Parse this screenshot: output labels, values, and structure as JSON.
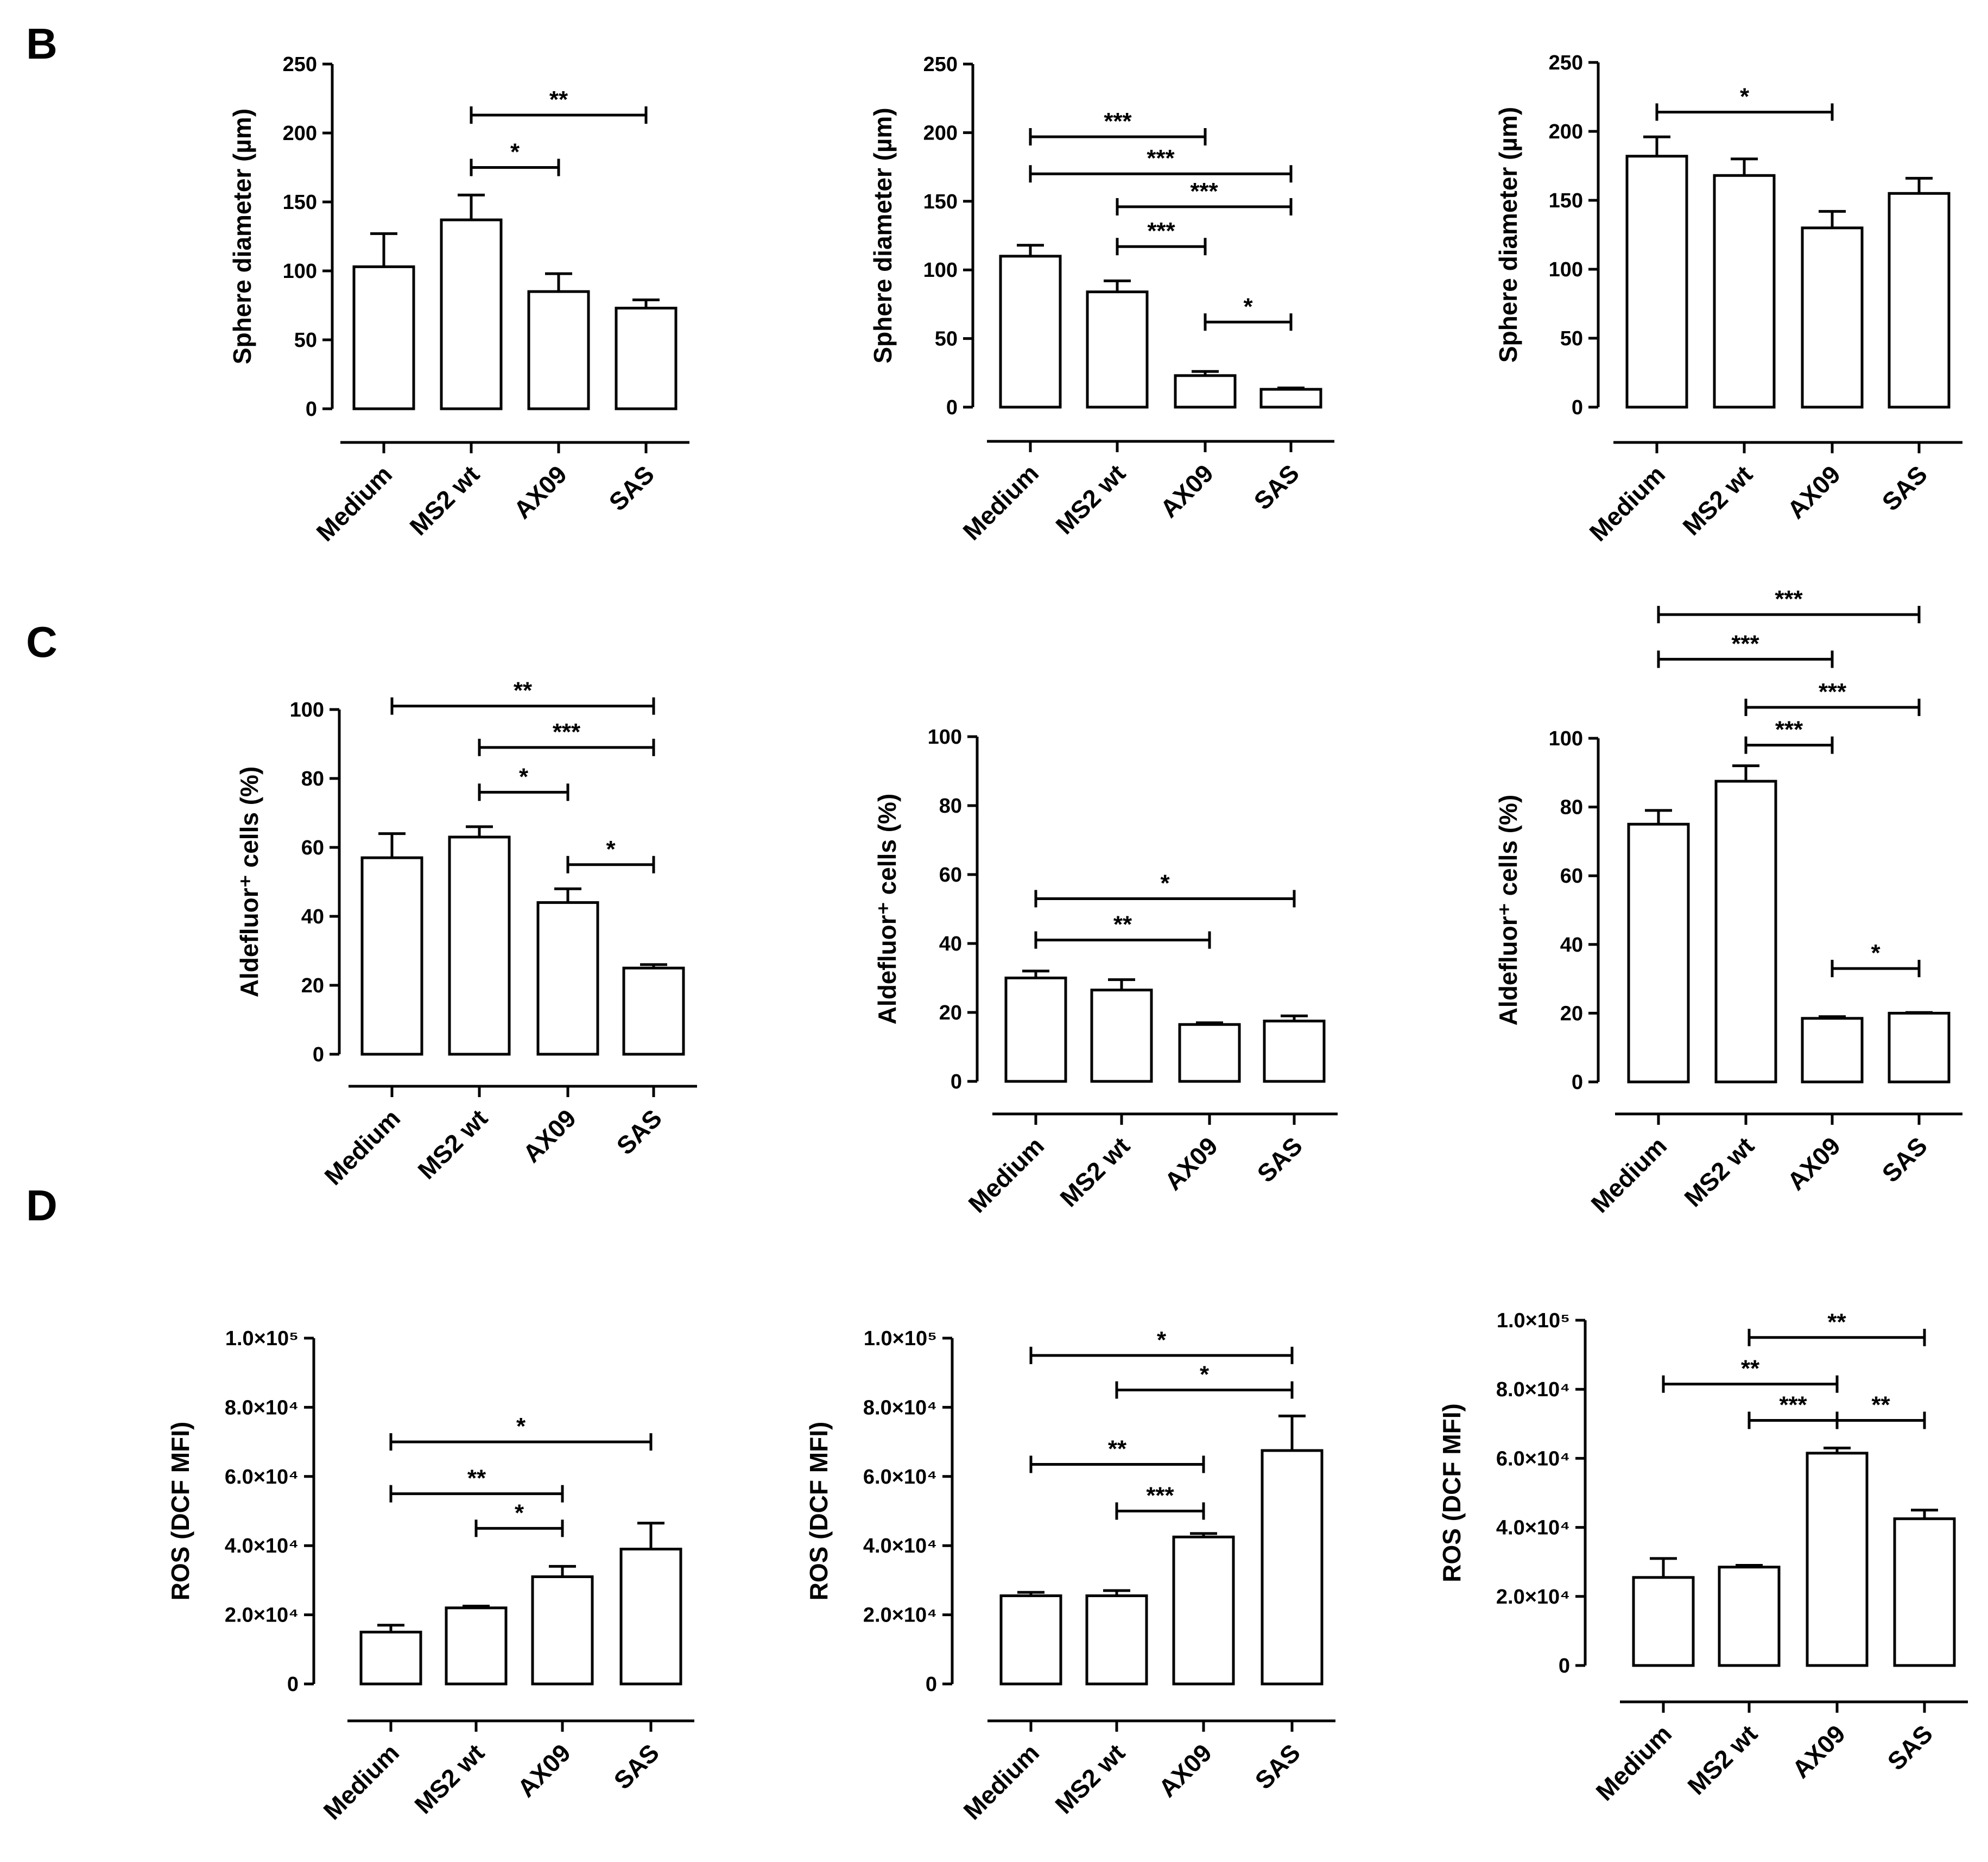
{
  "panel_labels": [
    "B",
    "C",
    "D"
  ],
  "colors": {
    "ink": "#000000",
    "bar_fill": "#ffffff",
    "background": "#ffffff"
  },
  "chart_data": [
    {
      "id": "B1",
      "type": "bar",
      "row": "B",
      "ylabel": "Sphere diameter (µm)",
      "ylim": [
        0,
        250
      ],
      "yticks": [
        0,
        50,
        100,
        150,
        200,
        250
      ],
      "ytick_labels": [
        "0",
        "50",
        "100",
        "150",
        "200",
        "250"
      ],
      "categories": [
        "Medium",
        "MS2 wt",
        "AX09",
        "SAS"
      ],
      "values": [
        103,
        137,
        85,
        73
      ],
      "errors": [
        24,
        18,
        13,
        6
      ],
      "significance": [
        {
          "from": 1,
          "to": 3,
          "level": 213,
          "label": "**"
        },
        {
          "from": 1,
          "to": 2,
          "level": 175,
          "label": "*"
        }
      ]
    },
    {
      "id": "B2",
      "type": "bar",
      "row": "B",
      "ylabel": "Sphere diameter (µm)",
      "ylim": [
        0,
        250
      ],
      "yticks": [
        0,
        50,
        100,
        150,
        200,
        250
      ],
      "ytick_labels": [
        "0",
        "50",
        "100",
        "150",
        "200",
        "250"
      ],
      "categories": [
        "Medium",
        "MS2 wt",
        "AX09",
        "SAS"
      ],
      "values": [
        110,
        84,
        23,
        13
      ],
      "errors": [
        8,
        8,
        3,
        1
      ],
      "significance": [
        {
          "from": 0,
          "to": 2,
          "level": 197,
          "label": "***"
        },
        {
          "from": 0,
          "to": 3,
          "level": 170,
          "label": "***"
        },
        {
          "from": 1,
          "to": 3,
          "level": 146,
          "label": "***"
        },
        {
          "from": 1,
          "to": 2,
          "level": 117,
          "label": "***"
        },
        {
          "from": 2,
          "to": 3,
          "level": 62,
          "label": "*"
        }
      ]
    },
    {
      "id": "B3",
      "type": "bar",
      "row": "B",
      "ylabel": "Sphere diameter (µm)",
      "ylim": [
        0,
        250
      ],
      "yticks": [
        0,
        50,
        100,
        150,
        200,
        250
      ],
      "ytick_labels": [
        "0",
        "50",
        "100",
        "150",
        "200",
        "250"
      ],
      "categories": [
        "Medium",
        "MS2 wt",
        "AX09",
        "SAS"
      ],
      "values": [
        182,
        168,
        130,
        155
      ],
      "errors": [
        14,
        12,
        12,
        11
      ],
      "significance": [
        {
          "from": 0,
          "to": 2,
          "level": 214,
          "label": "*"
        }
      ]
    },
    {
      "id": "C1",
      "type": "bar",
      "row": "C",
      "ylabel": "Aldefluor⁺ cells (%)",
      "ylim": [
        0,
        100
      ],
      "yticks": [
        0,
        20,
        40,
        60,
        80,
        100
      ],
      "ytick_labels": [
        "0",
        "20",
        "40",
        "60",
        "80",
        "100"
      ],
      "categories": [
        "Medium",
        "MS2 wt",
        "AX09",
        "SAS"
      ],
      "values": [
        57,
        63,
        44,
        25
      ],
      "errors": [
        7,
        3,
        4,
        1
      ],
      "significance": [
        {
          "from": 0,
          "to": 3,
          "level": 101,
          "label": "**"
        },
        {
          "from": 1,
          "to": 3,
          "level": 89,
          "label": "***"
        },
        {
          "from": 1,
          "to": 2,
          "level": 76,
          "label": "*"
        },
        {
          "from": 2,
          "to": 3,
          "level": 55,
          "label": "*"
        }
      ]
    },
    {
      "id": "C2",
      "type": "bar",
      "row": "C",
      "ylabel": "Aldefluor⁺ cells (%)",
      "ylim": [
        0,
        100
      ],
      "yticks": [
        0,
        20,
        40,
        60,
        80,
        100
      ],
      "ytick_labels": [
        "0",
        "20",
        "40",
        "60",
        "80",
        "100"
      ],
      "categories": [
        "Medium",
        "MS2 wt",
        "AX09",
        "SAS"
      ],
      "values": [
        30,
        26.5,
        16.5,
        17.5
      ],
      "errors": [
        2,
        3,
        0.5,
        1.5
      ],
      "significance": [
        {
          "from": 0,
          "to": 3,
          "level": 53,
          "label": "*"
        },
        {
          "from": 0,
          "to": 2,
          "level": 41,
          "label": "**"
        }
      ]
    },
    {
      "id": "C3",
      "type": "bar",
      "row": "C",
      "ylabel": "Aldefluor⁺ cells (%)",
      "ylim": [
        0,
        100
      ],
      "yticks": [
        0,
        20,
        40,
        60,
        80,
        100
      ],
      "ytick_labels": [
        "0",
        "20",
        "40",
        "60",
        "80",
        "100"
      ],
      "categories": [
        "Medium",
        "MS2 wt",
        "AX09",
        "SAS"
      ],
      "values": [
        75,
        87.5,
        18.5,
        20
      ],
      "errors": [
        4,
        4.5,
        0.5,
        0.2
      ],
      "significance": [
        {
          "from": 0,
          "to": 3,
          "level": 136,
          "label": "***"
        },
        {
          "from": 0,
          "to": 2,
          "level": 123,
          "label": "***"
        },
        {
          "from": 1,
          "to": 3,
          "level": 109,
          "label": "***"
        },
        {
          "from": 1,
          "to": 2,
          "level": 98,
          "label": "***"
        },
        {
          "from": 2,
          "to": 3,
          "level": 33,
          "label": "*"
        }
      ]
    },
    {
      "id": "D1",
      "type": "bar",
      "row": "D",
      "ylabel": "ROS (DCF MFI)",
      "ylim": [
        0,
        100000
      ],
      "yticks": [
        0,
        20000,
        40000,
        60000,
        80000,
        100000
      ],
      "ytick_labels": [
        "0",
        "2.0×10⁴",
        "4.0×10⁴",
        "6.0×10⁴",
        "8.0×10⁴",
        "1.0×10⁵"
      ],
      "categories": [
        "Medium",
        "MS2 wt",
        "AX09",
        "SAS"
      ],
      "values": [
        15000,
        22000,
        31000,
        39000
      ],
      "errors": [
        2000,
        500,
        3000,
        7500
      ],
      "significance": [
        {
          "from": 0,
          "to": 3,
          "level": 70000,
          "label": "*"
        },
        {
          "from": 0,
          "to": 2,
          "level": 55000,
          "label": "**"
        },
        {
          "from": 1,
          "to": 2,
          "level": 45000,
          "label": "*"
        }
      ]
    },
    {
      "id": "D2",
      "type": "bar",
      "row": "D",
      "ylabel": "ROS (DCF MFI)",
      "ylim": [
        0,
        100000
      ],
      "yticks": [
        0,
        20000,
        40000,
        60000,
        80000,
        100000
      ],
      "ytick_labels": [
        "0",
        "2.0×10⁴",
        "4.0×10⁴",
        "6.0×10⁴",
        "8.0×10⁴",
        "1.0×10⁵"
      ],
      "categories": [
        "Medium",
        "MS2 wt",
        "AX09",
        "SAS"
      ],
      "values": [
        25500,
        25500,
        42500,
        67500
      ],
      "errors": [
        1000,
        1500,
        1000,
        10000
      ],
      "significance": [
        {
          "from": 0,
          "to": 3,
          "level": 95000,
          "label": "*"
        },
        {
          "from": 1,
          "to": 3,
          "level": 85000,
          "label": "*"
        },
        {
          "from": 0,
          "to": 2,
          "level": 63500,
          "label": "**"
        },
        {
          "from": 1,
          "to": 2,
          "level": 50000,
          "label": "***"
        }
      ]
    },
    {
      "id": "D3",
      "type": "bar",
      "row": "D",
      "ylabel": "ROS (DCF MFI)",
      "ylim": [
        0,
        100000
      ],
      "yticks": [
        0,
        20000,
        40000,
        60000,
        80000,
        100000
      ],
      "ytick_labels": [
        "0",
        "2.0×10⁴",
        "4.0×10⁴",
        "6.0×10⁴",
        "8.0×10⁴",
        "1.0×10⁵"
      ],
      "categories": [
        "Medium",
        "MS2 wt",
        "AX09",
        "SAS"
      ],
      "values": [
        25500,
        28500,
        61500,
        42500
      ],
      "errors": [
        5500,
        500,
        1500,
        2500
      ],
      "significance": [
        {
          "from": 1,
          "to": 3,
          "level": 95000,
          "label": "**"
        },
        {
          "from": 0,
          "to": 2,
          "level": 81500,
          "label": "**"
        },
        {
          "from": 1,
          "to": 2,
          "level": 71000,
          "label": "***"
        },
        {
          "from": 2,
          "to": 3,
          "level": 71000,
          "label": "**"
        }
      ]
    }
  ]
}
